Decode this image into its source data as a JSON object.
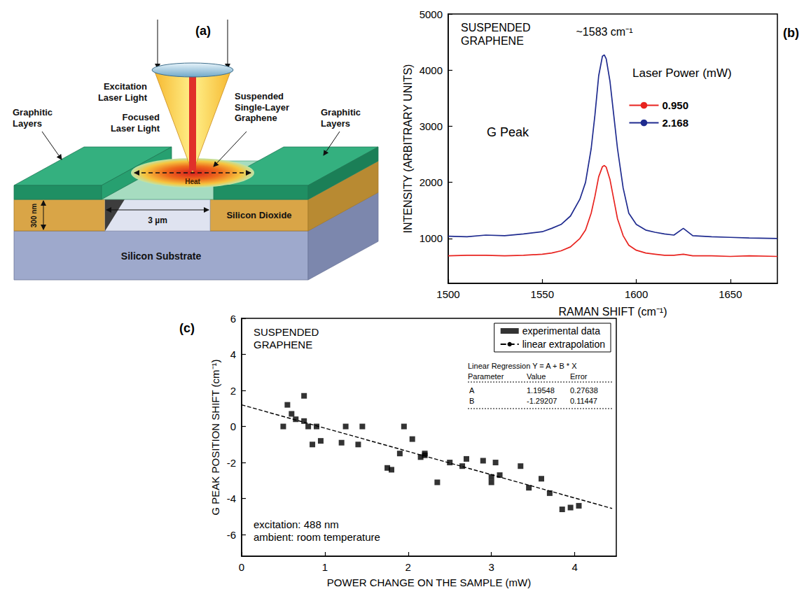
{
  "diagram": {
    "label": "(a)",
    "texts": {
      "excitation": [
        "Excitation",
        "Laser Light"
      ],
      "focused": [
        "Focused",
        "Laser Light"
      ],
      "graphene": [
        "Suspended",
        "Single-Layer",
        "Graphene"
      ],
      "graphitic_left": [
        "Graphitic",
        "Layers"
      ],
      "graphitic_right": [
        "Graphitic",
        "Layers"
      ],
      "heat": "Heat",
      "gap_width": "3 µm",
      "oxide_thickness": "300 nm",
      "oxide": "Silicon Dioxide",
      "substrate": "Silicon Substrate"
    }
  },
  "chart_data": [
    {
      "label": "(b)",
      "type": "line",
      "x_label": "RAMAN SHIFT (cm⁻¹)",
      "y_label": "INTENSITY (ARBITRARY UNITS)",
      "annotations": [
        {
          "text": [
            "SUSPENDED",
            "GRAPHENE"
          ]
        },
        {
          "text": "~1583 cm⁻¹"
        },
        {
          "text": "G Peak"
        }
      ],
      "legend_title": "Laser Power (mW)",
      "legend": "upper right",
      "x": [
        1500,
        1510,
        1520,
        1530,
        1540,
        1550,
        1555,
        1560,
        1565,
        1570,
        1573,
        1576,
        1578,
        1580,
        1582,
        1583,
        1584,
        1586,
        1588,
        1590,
        1593,
        1596,
        1600,
        1605,
        1610,
        1615,
        1620,
        1625,
        1630,
        1640,
        1650,
        1660,
        1675
      ],
      "series": [
        {
          "name": "0.950",
          "color": "#e8231f",
          "line_style": "solid",
          "values": [
            690,
            700,
            700,
            690,
            700,
            720,
            740,
            780,
            850,
            1000,
            1150,
            1450,
            1750,
            2100,
            2280,
            2300,
            2270,
            2050,
            1700,
            1350,
            1050,
            880,
            790,
            740,
            720,
            700,
            700,
            720,
            690,
            690,
            680,
            690,
            680
          ]
        },
        {
          "name": "2.168",
          "color": "#1f2b8f",
          "line_style": "solid",
          "values": [
            1040,
            1030,
            1060,
            1050,
            1080,
            1120,
            1180,
            1250,
            1400,
            1700,
            2000,
            2600,
            3200,
            3900,
            4250,
            4270,
            4200,
            3800,
            3200,
            2600,
            1900,
            1450,
            1250,
            1150,
            1110,
            1080,
            1060,
            1180,
            1050,
            1030,
            1020,
            1010,
            1000
          ]
        }
      ],
      "xlim": [
        1500,
        1675
      ],
      "xticks": [
        1500,
        1550,
        1600,
        1650
      ],
      "ylim": [
        200,
        5000
      ],
      "yticks": [
        1000,
        2000,
        3000,
        4000,
        5000
      ],
      "grid": false
    },
    {
      "label": "(c)",
      "type": "scatter",
      "x_label": "POWER CHANGE ON THE SAMPLE (mW)",
      "y_label": "G PEAK POSITION SHIFT (cm⁻¹)",
      "annotations": [
        {
          "text": [
            "SUSPENDED",
            "GRAPHENE"
          ]
        },
        {
          "text": [
            "excitation: 488 nm",
            "ambient: room temperature"
          ]
        }
      ],
      "regression": {
        "title": "Linear Regression Y = A + B * X",
        "header": [
          "Parameter",
          "Value",
          "Error"
        ],
        "rows": [
          [
            "A",
            "1.19548",
            "0.27638"
          ],
          [
            "B",
            "-1.29207",
            "0.11447"
          ]
        ]
      },
      "legend": "upper right",
      "series": [
        {
          "name": "experimental data",
          "type": "scatter",
          "marker": "square",
          "color": "#000000",
          "x": [
            0.5,
            0.55,
            0.6,
            0.65,
            0.75,
            0.75,
            0.8,
            0.85,
            0.9,
            0.95,
            1.2,
            1.25,
            1.4,
            1.45,
            1.75,
            1.8,
            1.9,
            1.95,
            2.05,
            2.15,
            2.2,
            2.2,
            2.35,
            2.5,
            2.65,
            2.7,
            2.9,
            3.0,
            3.0,
            3.05,
            3.1,
            3.35,
            3.45,
            3.6,
            3.7,
            3.85,
            3.95,
            4.05
          ],
          "values": [
            0.0,
            1.2,
            0.7,
            0.4,
            1.7,
            0.3,
            0.0,
            -1.0,
            0.0,
            -0.8,
            -0.9,
            0.0,
            -1.0,
            0.0,
            -2.3,
            -2.4,
            -1.5,
            0.0,
            -0.7,
            -1.7,
            -1.5,
            -1.6,
            -3.1,
            -2.0,
            -2.2,
            -1.8,
            -1.9,
            -3.1,
            -2.8,
            -2.0,
            -2.7,
            -2.2,
            -3.4,
            -2.9,
            -3.7,
            -4.6,
            -4.5,
            -4.4
          ]
        },
        {
          "name": "linear extrapolation",
          "type": "line",
          "line_style": "dashed",
          "color": "#000000",
          "x": [
            0,
            4.45
          ],
          "values": [
            1.2,
            -4.55
          ]
        }
      ],
      "xlim": [
        0,
        4.5
      ],
      "xticks": [
        0,
        1,
        2,
        3,
        4
      ],
      "ylim": [
        -7.2,
        6
      ],
      "yticks": [
        -6,
        -4,
        -2,
        0,
        2,
        4,
        6
      ],
      "grid": false
    }
  ]
}
